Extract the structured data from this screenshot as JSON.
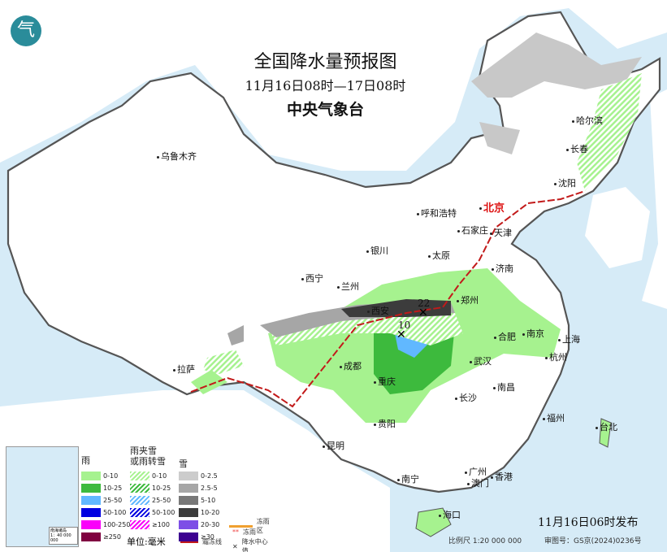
{
  "header": {
    "title": "全国降水量预报图",
    "period": "11月16日08时—17日08时",
    "issuer": "中央气象台",
    "logo_icon": "cma-logo-icon"
  },
  "cities": [
    {
      "name": "乌鲁木齐"
    },
    {
      "name": "哈尔滨"
    },
    {
      "name": "长春"
    },
    {
      "name": "沈阳"
    },
    {
      "name": "呼和浩特"
    },
    {
      "name": "北京",
      "capital": true
    },
    {
      "name": "天津"
    },
    {
      "name": "石家庄"
    },
    {
      "name": "太原"
    },
    {
      "name": "银川"
    },
    {
      "name": "西宁"
    },
    {
      "name": "兰州"
    },
    {
      "name": "济南"
    },
    {
      "name": "郑州"
    },
    {
      "name": "西安"
    },
    {
      "name": "合肥"
    },
    {
      "name": "南京"
    },
    {
      "name": "上海"
    },
    {
      "name": "杭州"
    },
    {
      "name": "武汉"
    },
    {
      "name": "成都"
    },
    {
      "name": "重庆"
    },
    {
      "name": "拉萨"
    },
    {
      "name": "南昌"
    },
    {
      "name": "长沙"
    },
    {
      "name": "贵阳"
    },
    {
      "name": "福州"
    },
    {
      "name": "台北"
    },
    {
      "name": "昆明"
    },
    {
      "name": "南宁"
    },
    {
      "name": "广州"
    },
    {
      "name": "香港"
    },
    {
      "name": "澳门"
    },
    {
      "name": "海口"
    }
  ],
  "precip_centers": [
    {
      "value": "22"
    },
    {
      "value": "10"
    }
  ],
  "legend": {
    "rain": {
      "title": "雨",
      "items": [
        {
          "label": "0-10",
          "color": "#a6f28f"
        },
        {
          "label": "10-25",
          "color": "#3dba3d"
        },
        {
          "label": "25-50",
          "color": "#61b8ff"
        },
        {
          "label": "50-100",
          "color": "#0000e1"
        },
        {
          "label": "100-250",
          "color": "#fa00fa"
        },
        {
          "label": "≥250",
          "color": "#800040"
        }
      ]
    },
    "sleet": {
      "title_line1": "雨夹雪",
      "title_line2": "或雨转雪",
      "items": [
        {
          "label": "0-10",
          "color": "#a6f28f"
        },
        {
          "label": "10-25",
          "color": "#3dba3d"
        },
        {
          "label": "25-50",
          "color": "#61b8ff"
        },
        {
          "label": "50-100",
          "color": "#0000e1"
        },
        {
          "label": "≥100",
          "color": "#fa00fa"
        }
      ]
    },
    "snow": {
      "title": "雪",
      "items": [
        {
          "label": "0-2.5",
          "color": "#cccccc"
        },
        {
          "label": "2.5-5",
          "color": "#a6a6a6"
        },
        {
          "label": "5-10",
          "color": "#787878"
        },
        {
          "label": "10-20",
          "color": "#3c3c3c"
        },
        {
          "label": "20-30",
          "color": "#7d4ee6"
        },
        {
          "label": "≥30",
          "color": "#3c0090"
        }
      ]
    },
    "unit": "单位:毫米",
    "freezing_rain_zone": "冻雨区",
    "freezing_rain": "冻雨",
    "snow_line": "雨雪分界线",
    "snow_line_label": "霜冻线",
    "center": "降水中心值",
    "inset_title": "南海诸岛",
    "inset_scale": "1：40 000 000"
  },
  "footer": {
    "issued": "11月16日06时发布",
    "scale": "比例尺 1:20 000 000",
    "review": "审图号：GS京(2024)0236号"
  }
}
